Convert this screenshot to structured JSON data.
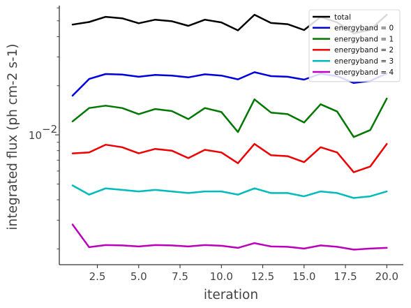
{
  "chart_data": {
    "type": "line",
    "xlabel": "iteration",
    "ylabel": "integrated flux (ph cm-2 s-1)",
    "x": [
      1,
      2,
      3,
      4,
      5,
      6,
      7,
      8,
      9,
      10,
      11,
      12,
      13,
      14,
      15,
      16,
      17,
      18,
      19,
      20
    ],
    "xlim": [
      0.2,
      21.0
    ],
    "ylim": [
      0.0016,
      0.062
    ],
    "yscale": "log",
    "x_ticks": [
      2.5,
      5.0,
      7.5,
      10.0,
      12.5,
      15.0,
      17.5,
      20.0
    ],
    "x_tick_labels": [
      "2.5",
      "5.0",
      "7.5",
      "10.0",
      "12.5",
      "15.0",
      "17.5",
      "20.0"
    ],
    "y_ticks": [
      0.01
    ],
    "y_tick_labels": [
      "10",
      "−2"
    ],
    "grid": false,
    "legend_position": "top-right",
    "series": [
      {
        "name": "total",
        "color": "#000000",
        "values": [
          0.0474,
          0.0492,
          0.0529,
          0.0518,
          0.0483,
          0.0508,
          0.0497,
          0.0466,
          0.0508,
          0.0489,
          0.0437,
          0.0545,
          0.0485,
          0.0477,
          0.0439,
          0.0528,
          0.0489,
          0.0419,
          0.0441,
          0.0545
        ]
      },
      {
        "name": "energyband = 0",
        "color": "#0000dd",
        "values": [
          0.0174,
          0.022,
          0.0236,
          0.0234,
          0.0227,
          0.0233,
          0.0231,
          0.0225,
          0.0235,
          0.0231,
          0.0219,
          0.0242,
          0.0229,
          0.0227,
          0.0218,
          0.0237,
          0.0229,
          0.0208,
          0.0214,
          0.0238
        ]
      },
      {
        "name": "energyband = 1",
        "color": "#007700",
        "values": [
          0.0121,
          0.0146,
          0.0151,
          0.0146,
          0.0134,
          0.0144,
          0.014,
          0.0125,
          0.0146,
          0.0138,
          0.0104,
          0.0165,
          0.0137,
          0.0134,
          0.0119,
          0.0154,
          0.0139,
          0.0097,
          0.0107,
          0.0167
        ]
      },
      {
        "name": "energyband = 2",
        "color": "#ee0000",
        "values": [
          0.0077,
          0.0078,
          0.0087,
          0.0084,
          0.0077,
          0.0082,
          0.008,
          0.0072,
          0.0081,
          0.0078,
          0.0067,
          0.0088,
          0.0075,
          0.0074,
          0.0068,
          0.0084,
          0.0078,
          0.0059,
          0.0064,
          0.0088
        ]
      },
      {
        "name": "energyband = 3",
        "color": "#00bbbb",
        "values": [
          0.0049,
          0.0043,
          0.0047,
          0.0046,
          0.0045,
          0.0046,
          0.0045,
          0.0044,
          0.0045,
          0.0045,
          0.0043,
          0.0047,
          0.0044,
          0.0044,
          0.0042,
          0.0045,
          0.0044,
          0.0041,
          0.0042,
          0.0045
        ]
      },
      {
        "name": "energyband = 4",
        "color": "#bb00bb",
        "values": [
          0.00282,
          0.00205,
          0.00211,
          0.0021,
          0.00207,
          0.00211,
          0.0021,
          0.00207,
          0.00211,
          0.00209,
          0.00203,
          0.00217,
          0.00207,
          0.00206,
          0.00201,
          0.0021,
          0.00206,
          0.00198,
          0.00201,
          0.00203
        ]
      }
    ]
  }
}
